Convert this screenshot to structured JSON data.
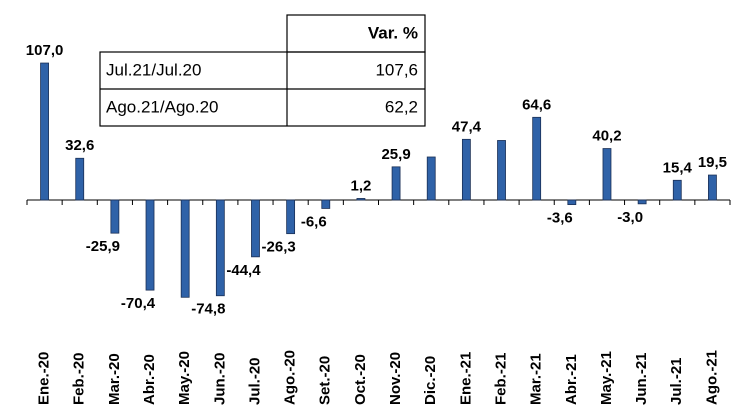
{
  "chart_data": {
    "type": "bar",
    "categories": [
      "Ene.-20",
      "Feb.-20",
      "Mar.-20",
      "Abr.-20",
      "May.-20",
      "Jun.-20",
      "Jul.-20",
      "Ago.-20",
      "Set.-20",
      "Oct.-20",
      "Nov.-20",
      "Dic.-20",
      "Ene.-21",
      "Feb.-21",
      "Mar.-21",
      "Abr.-21",
      "May.-21",
      "Jun.-21",
      "Jul.-21",
      "Ago.-21"
    ],
    "values": [
      107.0,
      32.6,
      -25.9,
      -70.4,
      -76,
      -74.8,
      -44.4,
      -26.3,
      -6.6,
      1.2,
      25.9,
      33.6,
      47.4,
      46.5,
      64.6,
      -3.6,
      40.2,
      -3.0,
      15.4,
      19.5
    ],
    "value_labels": [
      "107,0",
      "32,6",
      "-25,9",
      "-70,4",
      null,
      "-74,8",
      "-44,4",
      "-26,3",
      "-6,6",
      "1,2",
      "25,9",
      null,
      "47,4",
      null,
      "64,6",
      "-3,6",
      "40,2",
      "-3,0",
      "15,4",
      "19,5"
    ],
    "color": "#2f62a8",
    "table": {
      "header": "Var. %",
      "rows": [
        [
          "Jul.21/Jul.20",
          "107,6"
        ],
        [
          "Ago.21/Ago.20",
          "62,2"
        ]
      ]
    }
  }
}
